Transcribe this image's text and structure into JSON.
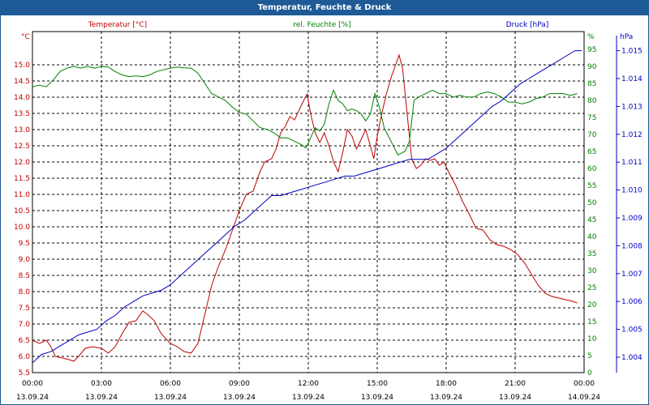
{
  "window": {
    "title": "Temperatur, Feuchte & Druck"
  },
  "colors": {
    "temperature": "#c00000",
    "humidity": "#008000",
    "pressure": "#0000c0",
    "grid": "#000000",
    "header": "#1e5a96"
  },
  "chart_data": {
    "type": "line",
    "title": "Temperatur, Feuchte & Druck",
    "grid": true,
    "x_ticks": [
      {
        "time": "00:00",
        "date": "13.09.24"
      },
      {
        "time": "03:00",
        "date": "13.09.24"
      },
      {
        "time": "06:00",
        "date": "13.09.24"
      },
      {
        "time": "09:00",
        "date": "13.09.24"
      },
      {
        "time": "12:00",
        "date": "13.09.24"
      },
      {
        "time": "15:00",
        "date": "13.09.24"
      },
      {
        "time": "18:00",
        "date": "13.09.24"
      },
      {
        "time": "21:00",
        "date": "13.09.24"
      },
      {
        "time": "00:00",
        "date": "14.09.24"
      }
    ],
    "axes": {
      "temperature": {
        "label": "Temperatur [°C]",
        "unit": "°C",
        "ylim": [
          5.5,
          15.5
        ],
        "ticks": [
          "15.0",
          "14.5",
          "14.0",
          "13.5",
          "13.0",
          "12.5",
          "12.0",
          "11.5",
          "11.0",
          "10.5",
          "10.0",
          "9.5",
          "9.0",
          "8.5",
          "8.0",
          "7.5",
          "7.0",
          "6.5",
          "6.0",
          "5.5"
        ]
      },
      "humidity": {
        "label": "rel. Feuchte [%]",
        "unit": "%",
        "ylim": [
          0,
          100
        ],
        "ticks": [
          "95",
          "90",
          "85",
          "80",
          "75",
          "70",
          "65",
          "60",
          "55",
          "50",
          "45",
          "40",
          "35",
          "30",
          "25",
          "20",
          "15",
          "10",
          "5",
          "0"
        ]
      },
      "pressure": {
        "label": "Druck [hPa]",
        "unit": "hPa",
        "ylim": [
          1.0033,
          1.0153
        ],
        "ticks": [
          "1.015",
          "1.014",
          "1.013",
          "1.012",
          "1.011",
          "1.010",
          "1.009",
          "1.008",
          "1.007",
          "1.006",
          "1.005",
          "1.004"
        ]
      }
    },
    "series": [
      {
        "name": "Temperatur [°C]",
        "axis": "temperature",
        "points": [
          [
            0,
            6.5
          ],
          [
            0.3,
            6.4
          ],
          [
            0.6,
            6.5
          ],
          [
            0.8,
            6.3
          ],
          [
            1.0,
            6.0
          ],
          [
            1.3,
            5.95
          ],
          [
            1.6,
            5.9
          ],
          [
            1.8,
            5.85
          ],
          [
            2.0,
            6.0
          ],
          [
            2.3,
            6.25
          ],
          [
            2.6,
            6.3
          ],
          [
            3.0,
            6.25
          ],
          [
            3.3,
            6.1
          ],
          [
            3.6,
            6.3
          ],
          [
            3.9,
            6.7
          ],
          [
            4.2,
            7.05
          ],
          [
            4.5,
            7.1
          ],
          [
            4.8,
            7.4
          ],
          [
            5.0,
            7.3
          ],
          [
            5.3,
            7.1
          ],
          [
            5.6,
            6.7
          ],
          [
            6.0,
            6.4
          ],
          [
            6.3,
            6.3
          ],
          [
            6.6,
            6.15
          ],
          [
            6.9,
            6.1
          ],
          [
            7.2,
            6.4
          ],
          [
            7.5,
            7.3
          ],
          [
            7.8,
            8.2
          ],
          [
            8.1,
            8.8
          ],
          [
            8.4,
            9.3
          ],
          [
            8.7,
            9.9
          ],
          [
            9.0,
            10.5
          ],
          [
            9.3,
            11.0
          ],
          [
            9.6,
            11.1
          ],
          [
            9.9,
            11.7
          ],
          [
            10.1,
            12.0
          ],
          [
            10.4,
            12.1
          ],
          [
            10.6,
            12.4
          ],
          [
            10.8,
            12.9
          ],
          [
            11.0,
            13.1
          ],
          [
            11.2,
            13.4
          ],
          [
            11.4,
            13.3
          ],
          [
            11.6,
            13.6
          ],
          [
            11.8,
            13.9
          ],
          [
            11.95,
            14.1
          ],
          [
            12.1,
            13.5
          ],
          [
            12.3,
            12.9
          ],
          [
            12.5,
            12.6
          ],
          [
            12.7,
            12.9
          ],
          [
            12.9,
            12.5
          ],
          [
            13.1,
            12.0
          ],
          [
            13.3,
            11.7
          ],
          [
            13.5,
            12.3
          ],
          [
            13.7,
            13.0
          ],
          [
            13.9,
            12.8
          ],
          [
            14.1,
            12.4
          ],
          [
            14.3,
            12.7
          ],
          [
            14.5,
            13.0
          ],
          [
            14.7,
            12.5
          ],
          [
            14.85,
            12.1
          ],
          [
            15.0,
            12.8
          ],
          [
            15.2,
            13.5
          ],
          [
            15.4,
            14.1
          ],
          [
            15.6,
            14.6
          ],
          [
            15.8,
            15.0
          ],
          [
            15.95,
            15.3
          ],
          [
            16.1,
            14.9
          ],
          [
            16.3,
            13.5
          ],
          [
            16.5,
            12.1
          ],
          [
            16.7,
            11.8
          ],
          [
            16.9,
            11.9
          ],
          [
            17.1,
            12.1
          ],
          [
            17.3,
            12.05
          ],
          [
            17.5,
            12.1
          ],
          [
            17.7,
            11.9
          ],
          [
            17.9,
            12.0
          ],
          [
            18.1,
            11.7
          ],
          [
            18.4,
            11.3
          ],
          [
            18.7,
            10.8
          ],
          [
            19.0,
            10.4
          ],
          [
            19.3,
            9.95
          ],
          [
            19.6,
            9.9
          ],
          [
            19.9,
            9.6
          ],
          [
            20.2,
            9.45
          ],
          [
            20.5,
            9.4
          ],
          [
            20.8,
            9.3
          ],
          [
            21.1,
            9.15
          ],
          [
            21.4,
            8.9
          ],
          [
            21.7,
            8.55
          ],
          [
            22.0,
            8.2
          ],
          [
            22.3,
            7.95
          ],
          [
            22.6,
            7.85
          ],
          [
            22.9,
            7.8
          ],
          [
            23.2,
            7.75
          ],
          [
            23.5,
            7.7
          ],
          [
            23.7,
            7.65
          ]
        ]
      },
      {
        "name": "rel. Feuchte [%]",
        "axis": "humidity",
        "points": [
          [
            0,
            84
          ],
          [
            0.3,
            84.5
          ],
          [
            0.6,
            84
          ],
          [
            0.9,
            86
          ],
          [
            1.2,
            88.5
          ],
          [
            1.5,
            89.5
          ],
          [
            1.8,
            90
          ],
          [
            2.1,
            89.5
          ],
          [
            2.4,
            90
          ],
          [
            2.7,
            89.5
          ],
          [
            3.0,
            90
          ],
          [
            3.3,
            89.8
          ],
          [
            3.6,
            88.5
          ],
          [
            3.9,
            87.5
          ],
          [
            4.2,
            87
          ],
          [
            4.5,
            87.2
          ],
          [
            4.8,
            87
          ],
          [
            5.1,
            87.5
          ],
          [
            5.4,
            88.5
          ],
          [
            5.7,
            89
          ],
          [
            6.0,
            89.5
          ],
          [
            6.3,
            89.8
          ],
          [
            6.6,
            89.6
          ],
          [
            6.9,
            89.5
          ],
          [
            7.2,
            88
          ],
          [
            7.5,
            85
          ],
          [
            7.8,
            82
          ],
          [
            8.1,
            81
          ],
          [
            8.4,
            80
          ],
          [
            8.7,
            78
          ],
          [
            9.0,
            76.5
          ],
          [
            9.3,
            76
          ],
          [
            9.6,
            74
          ],
          [
            9.9,
            72
          ],
          [
            10.2,
            71.5
          ],
          [
            10.5,
            70.5
          ],
          [
            10.8,
            69
          ],
          [
            11.1,
            69
          ],
          [
            11.4,
            68
          ],
          [
            11.7,
            67
          ],
          [
            11.9,
            66
          ],
          [
            12.1,
            69
          ],
          [
            12.3,
            72
          ],
          [
            12.5,
            71
          ],
          [
            12.7,
            73
          ],
          [
            12.9,
            79
          ],
          [
            13.1,
            83
          ],
          [
            13.3,
            80
          ],
          [
            13.5,
            79
          ],
          [
            13.7,
            77
          ],
          [
            13.9,
            77.5
          ],
          [
            14.1,
            77
          ],
          [
            14.3,
            76
          ],
          [
            14.5,
            74
          ],
          [
            14.7,
            76
          ],
          [
            14.9,
            82
          ],
          [
            15.1,
            78
          ],
          [
            15.3,
            72
          ],
          [
            15.6,
            68
          ],
          [
            15.9,
            64
          ],
          [
            16.2,
            65
          ],
          [
            16.4,
            68
          ],
          [
            16.6,
            80
          ],
          [
            16.8,
            81
          ],
          [
            17.1,
            82
          ],
          [
            17.4,
            83
          ],
          [
            17.7,
            82
          ],
          [
            18.0,
            82
          ],
          [
            18.3,
            81
          ],
          [
            18.6,
            81.5
          ],
          [
            18.9,
            81
          ],
          [
            19.2,
            81
          ],
          [
            19.5,
            82
          ],
          [
            19.8,
            82.5
          ],
          [
            20.1,
            82
          ],
          [
            20.4,
            81
          ],
          [
            20.7,
            79.5
          ],
          [
            21.0,
            79.5
          ],
          [
            21.3,
            79
          ],
          [
            21.6,
            79.5
          ],
          [
            21.9,
            80.5
          ],
          [
            22.2,
            81
          ],
          [
            22.5,
            82
          ],
          [
            22.8,
            82
          ],
          [
            23.1,
            82
          ],
          [
            23.4,
            81.5
          ],
          [
            23.7,
            82
          ]
        ]
      },
      {
        "name": "Druck [hPa]",
        "axis": "pressure",
        "points": [
          [
            0,
            1.0038
          ],
          [
            0.4,
            1.0041
          ],
          [
            0.8,
            1.0042
          ],
          [
            1.2,
            1.0044
          ],
          [
            1.6,
            1.0046
          ],
          [
            2.0,
            1.0048
          ],
          [
            2.4,
            1.0049
          ],
          [
            2.8,
            1.005
          ],
          [
            3.2,
            1.0053
          ],
          [
            3.6,
            1.0055
          ],
          [
            4.0,
            1.0058
          ],
          [
            4.4,
            1.006
          ],
          [
            4.8,
            1.0062
          ],
          [
            5.2,
            1.0063
          ],
          [
            5.6,
            1.0064
          ],
          [
            6.0,
            1.0066
          ],
          [
            6.4,
            1.0069
          ],
          [
            6.8,
            1.0072
          ],
          [
            7.2,
            1.0075
          ],
          [
            7.6,
            1.0078
          ],
          [
            8.0,
            1.0081
          ],
          [
            8.4,
            1.0084
          ],
          [
            8.8,
            1.0087
          ],
          [
            9.2,
            1.0089
          ],
          [
            9.6,
            1.0092
          ],
          [
            10.0,
            1.0095
          ],
          [
            10.4,
            1.0098
          ],
          [
            10.8,
            1.0098
          ],
          [
            11.2,
            1.0099
          ],
          [
            11.6,
            1.01
          ],
          [
            12.0,
            1.0101
          ],
          [
            12.4,
            1.0102
          ],
          [
            12.8,
            1.0103
          ],
          [
            13.2,
            1.0104
          ],
          [
            13.6,
            1.0105
          ],
          [
            14.0,
            1.0105
          ],
          [
            14.4,
            1.0106
          ],
          [
            14.8,
            1.0107
          ],
          [
            15.2,
            1.0108
          ],
          [
            15.6,
            1.0109
          ],
          [
            16.0,
            1.011
          ],
          [
            16.4,
            1.0111
          ],
          [
            16.8,
            1.0111
          ],
          [
            17.2,
            1.0111
          ],
          [
            17.6,
            1.0113
          ],
          [
            18.0,
            1.0115
          ],
          [
            18.4,
            1.0118
          ],
          [
            18.8,
            1.0121
          ],
          [
            19.2,
            1.0124
          ],
          [
            19.6,
            1.0127
          ],
          [
            20.0,
            1.013
          ],
          [
            20.4,
            1.0132
          ],
          [
            20.8,
            1.0135
          ],
          [
            21.2,
            1.0138
          ],
          [
            21.6,
            1.014
          ],
          [
            22.0,
            1.0142
          ],
          [
            22.4,
            1.0144
          ],
          [
            22.8,
            1.0146
          ],
          [
            23.2,
            1.0148
          ],
          [
            23.6,
            1.015
          ],
          [
            23.9,
            1.015
          ]
        ]
      }
    ]
  }
}
